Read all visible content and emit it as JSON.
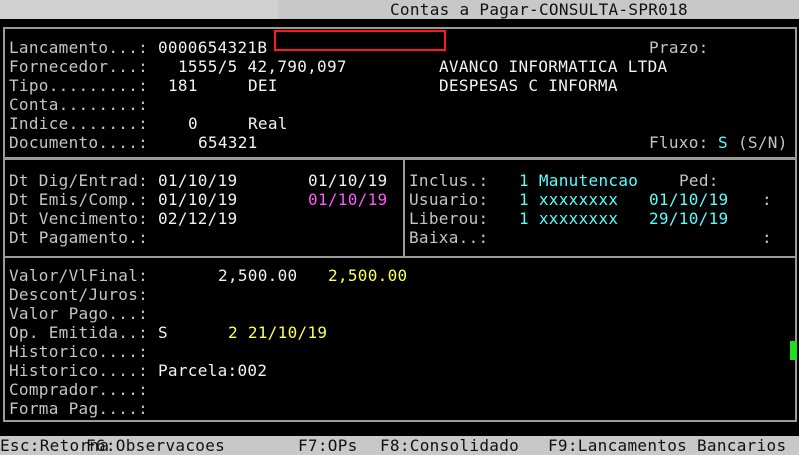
{
  "title": "Contas a Pagar-CONSULTA-SPR018",
  "header": {
    "lancamento_label": "Lancamento...:",
    "lancamento_value": "0000654321B",
    "prazo_label": "Prazo:",
    "fornecedor_label": "Fornecedor...:",
    "fornecedor_value": "1555/5 42,790,097",
    "fornecedor_name": "AVANCO INFORMATICA LTDA",
    "tipo_label": "Tipo.........:",
    "tipo_code": "181",
    "tipo_abbr": "DEI",
    "tipo_desc": "DESPESAS C INFORMA",
    "conta_label": "Conta........:",
    "indice_label": "Indice.......:",
    "indice_value": "0",
    "indice_name": "Real",
    "documento_label": "Documento....:",
    "documento_value": "654321",
    "fluxo_label": "Fluxo:",
    "fluxo_value": "S",
    "fluxo_options": "(S/N)"
  },
  "dates": {
    "dig_label": "Dt Dig/Entrad:",
    "dig_value": "01/10/19",
    "dig_value2": "01/10/19",
    "emis_label": "Dt Emis/Comp.:",
    "emis_value": "01/10/19",
    "emis_value2": "01/10/19",
    "venc_label": "Dt Vencimento:",
    "venc_value": "02/12/19",
    "pag_label": "Dt Pagamento.:"
  },
  "users": {
    "inclus_label": "Inclus.:",
    "inclus_value": "1 Manutencao",
    "ped_label": "Ped:",
    "usuario_label": "Usuario:",
    "usuario_value": "1 xxxxxxxx",
    "usuario_date": "01/10/19",
    "usuario_colon": ":",
    "liberou_label": "Liberou:",
    "liberou_value": "1 xxxxxxxx",
    "liberou_date": "29/10/19",
    "baixa_label": "Baixa..:",
    "baixa_colon": ":"
  },
  "values": {
    "valor_label": "Valor/VlFinal:",
    "valor_value": "2,500.00",
    "valor_final": "2,500.00",
    "descont_label": "Descont/Juros:",
    "pago_label": "Valor Pago...:",
    "op_label": "Op. Emitida..:",
    "op_value": "S",
    "op_detail": "2 21/10/19",
    "hist1_label": "Historico....:",
    "hist2_label": "Historico....:",
    "hist2_value": "Parcela:002",
    "comprador_label": "Comprador....:",
    "forma_label": "Forma Pag....:"
  },
  "footer": {
    "esc": "Esc:Retorna",
    "f6": "F6:Observacoes",
    "f7": "F7:OPs",
    "f8": "F8:Consolidado",
    "f9": "F9:Lancamentos Bancarios"
  },
  "colors": {
    "cyan": "#55ffff",
    "magenta": "#ff55ff",
    "yellow": "#ffff55",
    "cursor": "#22dd22",
    "highlight": "#ff1a1a"
  }
}
